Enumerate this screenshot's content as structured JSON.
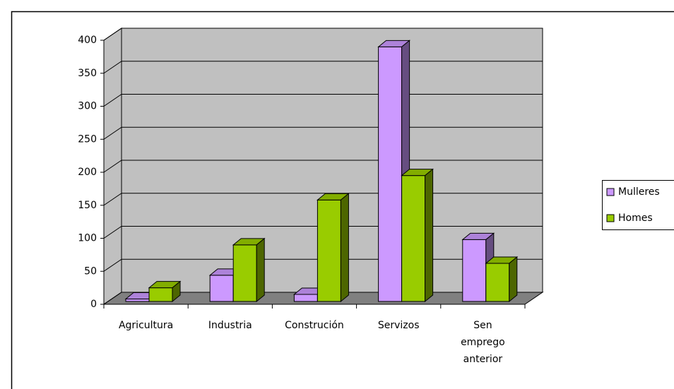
{
  "chart_data": {
    "type": "bar3d",
    "categories": [
      "Agricultura",
      "Industria",
      "Construción",
      "Servizos",
      "Sen emprego anterior"
    ],
    "series": [
      {
        "name": "Mulleres",
        "color": "#cc99ff",
        "values": [
          8,
          44,
          15,
          390,
          98
        ]
      },
      {
        "name": "Homes",
        "color": "#99cc00",
        "values": [
          25,
          90,
          158,
          195,
          62
        ]
      }
    ],
    "ylim": [
      0,
      400
    ],
    "yticks": [
      0,
      50,
      100,
      150,
      200,
      250,
      300,
      350,
      400
    ],
    "grid": true,
    "legend": "right"
  }
}
